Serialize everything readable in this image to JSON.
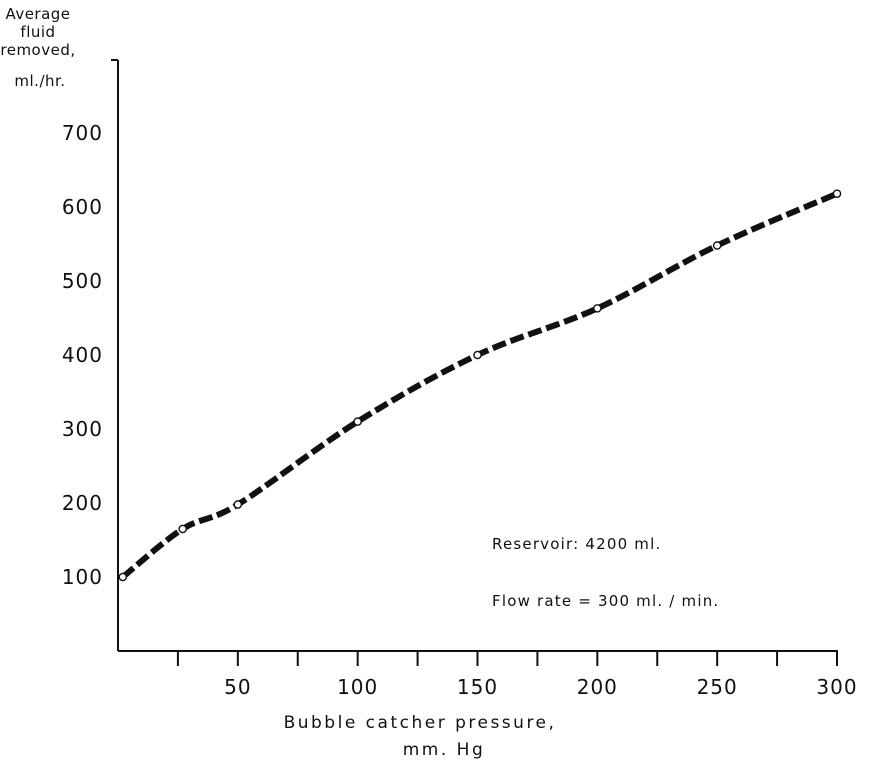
{
  "chart_data": {
    "type": "line",
    "title": "",
    "ylabel_lines": [
      "Average",
      "fluid",
      "removed,",
      "ml./hr."
    ],
    "xlabel_lines": [
      "Bubble catcher pressure,",
      "mm. Hg"
    ],
    "xlim": [
      0,
      300
    ],
    "ylim": [
      0,
      700
    ],
    "x_ticks": [
      25,
      50,
      75,
      100,
      125,
      150,
      175,
      200,
      225,
      250,
      275,
      300
    ],
    "x_tick_labels": [
      {
        "value": 50,
        "label": "50"
      },
      {
        "value": 100,
        "label": "100"
      },
      {
        "value": 150,
        "label": "150"
      },
      {
        "value": 200,
        "label": "200"
      },
      {
        "value": 250,
        "label": "250"
      },
      {
        "value": 300,
        "label": "300"
      }
    ],
    "y_ticks": [
      {
        "value": 100,
        "label": "100"
      },
      {
        "value": 200,
        "label": "200"
      },
      {
        "value": 300,
        "label": "300"
      },
      {
        "value": 400,
        "label": "400"
      },
      {
        "value": 500,
        "label": "500"
      },
      {
        "value": 600,
        "label": "600"
      },
      {
        "value": 700,
        "label": "700"
      }
    ],
    "grid": false,
    "line_style": "dashed",
    "marker": "open-circle",
    "series": [
      {
        "x": [
          2,
          27,
          50,
          100,
          150,
          200,
          250,
          300
        ],
        "y": [
          100,
          165,
          198,
          310,
          400,
          463,
          548,
          618
        ]
      }
    ],
    "annotations": [
      "Reservoir: 4200 ml.",
      "Flow rate = 300 ml. / min."
    ]
  },
  "colors": {
    "ink": "#111111",
    "background": "#ffffff"
  }
}
